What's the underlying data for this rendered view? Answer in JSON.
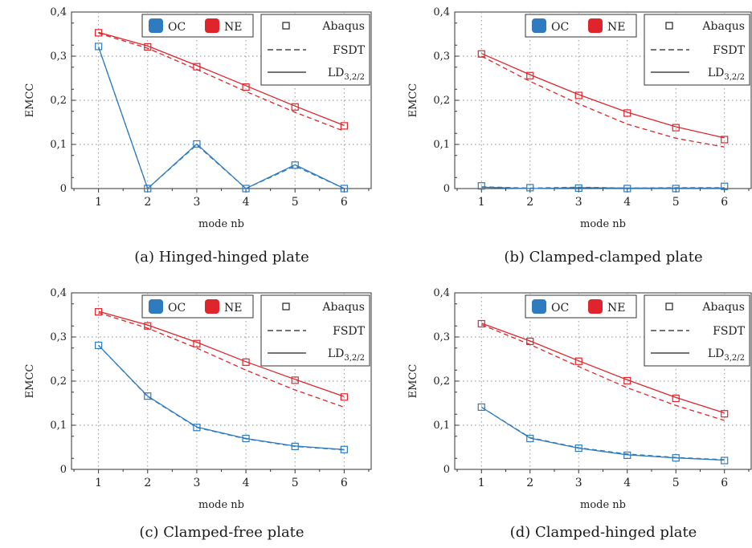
{
  "legend": {
    "oc": "OC",
    "ne": "NE",
    "abaqus": "Abaqus",
    "fsdt": "FSDT",
    "ld_main": "LD",
    "ld_sub": "3,2/2"
  },
  "colors": {
    "oc": "#2f7bbf",
    "ne": "#e0242c",
    "grid": "#8a8a8a",
    "axis": "#333333"
  },
  "chart_data": [
    {
      "type": "line",
      "caption": "(a) Hinged-hinged plate",
      "xlabel": "mode nb",
      "ylabel": "EMCC",
      "x": [
        1,
        2,
        3,
        4,
        5,
        6
      ],
      "ylim": [
        0,
        0.4
      ],
      "yticks": [
        "0",
        "0,1",
        "0,2",
        "0,3",
        "0,4"
      ],
      "grid": true,
      "legend_position": "top",
      "series": [
        {
          "name": "OC",
          "method": "Abaqus",
          "values": [
            0.322,
            0.0,
            0.101,
            0.0,
            0.053,
            0.0
          ]
        },
        {
          "name": "OC",
          "method": "FSDT",
          "values": [
            0.321,
            0.0,
            0.099,
            0.0,
            0.051,
            0.0
          ]
        },
        {
          "name": "OC",
          "method": "LD3,2/2",
          "values": [
            0.321,
            0.0,
            0.101,
            0.0,
            0.054,
            0.0
          ]
        },
        {
          "name": "NE",
          "method": "Abaqus",
          "values": [
            0.353,
            0.321,
            0.276,
            0.23,
            0.185,
            0.142
          ]
        },
        {
          "name": "NE",
          "method": "FSDT",
          "values": [
            0.352,
            0.318,
            0.27,
            0.22,
            0.173,
            0.13
          ]
        },
        {
          "name": "NE",
          "method": "LD3,2/2",
          "values": [
            0.354,
            0.323,
            0.279,
            0.233,
            0.187,
            0.143
          ]
        }
      ]
    },
    {
      "type": "line",
      "caption": "(b) Clamped-clamped plate",
      "xlabel": "mode nb",
      "ylabel": "EMCC",
      "x": [
        1,
        2,
        3,
        4,
        5,
        6
      ],
      "ylim": [
        0,
        0.4
      ],
      "yticks": [
        "0",
        "0,1",
        "0,2",
        "0,3",
        "0,4"
      ],
      "grid": true,
      "legend_position": "top",
      "series": [
        {
          "name": "OC",
          "method": "Abaqus",
          "values": [
            0.006,
            0.002,
            0.001,
            0.0,
            0.0,
            0.005
          ]
        },
        {
          "name": "OC",
          "method": "FSDT",
          "values": [
            0.004,
            0.001,
            0.003,
            0.001,
            0.002,
            0.002
          ]
        },
        {
          "name": "OC",
          "method": "LD3,2/2",
          "values": [
            0.003,
            0.0,
            0.002,
            0.001,
            0.001,
            0.001
          ]
        },
        {
          "name": "NE",
          "method": "Abaqus",
          "values": [
            0.305,
            0.256,
            0.211,
            0.171,
            0.138,
            0.111
          ]
        },
        {
          "name": "NE",
          "method": "FSDT",
          "values": [
            0.3,
            0.243,
            0.192,
            0.146,
            0.114,
            0.094
          ]
        },
        {
          "name": "NE",
          "method": "LD3,2/2",
          "values": [
            0.306,
            0.258,
            0.213,
            0.173,
            0.14,
            0.115
          ]
        }
      ]
    },
    {
      "type": "line",
      "caption": "(c) Clamped-free plate",
      "xlabel": "mode nb",
      "ylabel": "EMCC",
      "x": [
        1,
        2,
        3,
        4,
        5,
        6
      ],
      "ylim": [
        0,
        0.4
      ],
      "yticks": [
        "0",
        "0,1",
        "0,2",
        "0,3",
        "0,4"
      ],
      "grid": true,
      "legend_position": "top",
      "series": [
        {
          "name": "OC",
          "method": "Abaqus",
          "values": [
            0.281,
            0.166,
            0.095,
            0.07,
            0.052,
            0.045
          ]
        },
        {
          "name": "OC",
          "method": "FSDT",
          "values": [
            0.281,
            0.165,
            0.095,
            0.069,
            0.052,
            0.044
          ]
        },
        {
          "name": "OC",
          "method": "LD3,2/2",
          "values": [
            0.281,
            0.166,
            0.096,
            0.07,
            0.053,
            0.045
          ]
        },
        {
          "name": "NE",
          "method": "Abaqus",
          "values": [
            0.357,
            0.325,
            0.285,
            0.243,
            0.202,
            0.164
          ]
        },
        {
          "name": "NE",
          "method": "FSDT",
          "values": [
            0.355,
            0.32,
            0.275,
            0.225,
            0.18,
            0.141
          ]
        },
        {
          "name": "NE",
          "method": "LD3,2/2",
          "values": [
            0.358,
            0.327,
            0.288,
            0.244,
            0.204,
            0.165
          ]
        }
      ]
    },
    {
      "type": "line",
      "caption": "(d) Clamped-hinged plate",
      "xlabel": "mode nb",
      "ylabel": "EMCC",
      "x": [
        1,
        2,
        3,
        4,
        5,
        6
      ],
      "ylim": [
        0,
        0.4
      ],
      "yticks": [
        "0",
        "0,1",
        "0,2",
        "0,3",
        "0,4"
      ],
      "grid": true,
      "legend_position": "top",
      "series": [
        {
          "name": "OC",
          "method": "Abaqus",
          "values": [
            0.141,
            0.07,
            0.048,
            0.032,
            0.026,
            0.02
          ]
        },
        {
          "name": "OC",
          "method": "FSDT",
          "values": [
            0.141,
            0.072,
            0.049,
            0.035,
            0.027,
            0.022
          ]
        },
        {
          "name": "OC",
          "method": "LD3,2/2",
          "values": [
            0.141,
            0.071,
            0.048,
            0.033,
            0.026,
            0.021
          ]
        },
        {
          "name": "NE",
          "method": "Abaqus",
          "values": [
            0.33,
            0.29,
            0.245,
            0.201,
            0.161,
            0.126
          ]
        },
        {
          "name": "NE",
          "method": "FSDT",
          "values": [
            0.328,
            0.283,
            0.233,
            0.185,
            0.145,
            0.111
          ]
        },
        {
          "name": "NE",
          "method": "LD3,2/2",
          "values": [
            0.331,
            0.291,
            0.246,
            0.203,
            0.163,
            0.128
          ]
        }
      ]
    }
  ]
}
